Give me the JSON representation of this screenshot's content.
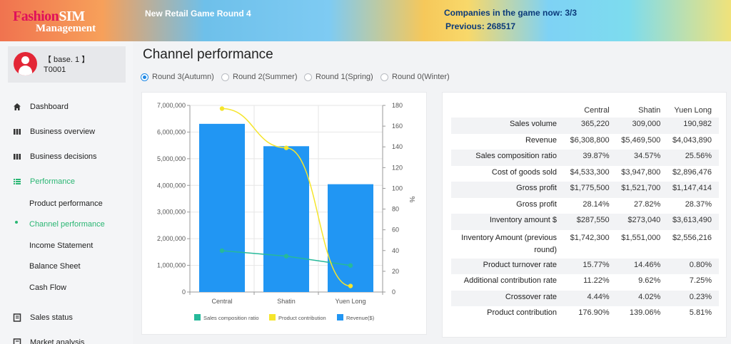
{
  "header": {
    "logo_line1_a": "Fashion",
    "logo_line1_b": "SIM",
    "logo_line2": "Management",
    "game_title": "New Retail Game Round 4",
    "companies": "Companies in the game now: 3/3",
    "previous": "Previous: 268517"
  },
  "user": {
    "name": "【 base. 1 】",
    "id": "T0001",
    "avatar_icon": "user-avatar-icon"
  },
  "sidebar": {
    "items": [
      {
        "label": "Dashboard",
        "icon": "home-icon"
      },
      {
        "label": "Business overview",
        "icon": "columns-icon"
      },
      {
        "label": "Business decisions",
        "icon": "columns-icon"
      },
      {
        "label": "Performance",
        "icon": "list-icon"
      }
    ],
    "sub_items": [
      "Product performance",
      "Channel performance",
      "Income Statement",
      "Balance Sheet",
      "Cash Flow"
    ],
    "more_items": [
      {
        "label": "Sales status",
        "icon": "book-icon"
      },
      {
        "label": "Market analysis",
        "icon": "book-icon"
      }
    ],
    "active_color": "#2ab673"
  },
  "main": {
    "title": "Channel performance",
    "rounds": [
      {
        "label": "Round 3(Autumn)",
        "selected": true
      },
      {
        "label": "Round 2(Summer)",
        "selected": false
      },
      {
        "label": "Round 1(Spring)",
        "selected": false
      },
      {
        "label": "Round 0(Winter)",
        "selected": false
      }
    ]
  },
  "chart_data": {
    "type": "bar",
    "categories": [
      "Central",
      "Shatin",
      "Yuen Long"
    ],
    "series": [
      {
        "name": "Revenue($)",
        "type": "bar",
        "axis": "left",
        "color": "#2196f3",
        "values": [
          6308800,
          5469500,
          4043890
        ]
      },
      {
        "name": "Sales composition ratio",
        "type": "line",
        "axis": "right",
        "color": "#26b99a",
        "values": [
          39.87,
          34.57,
          25.56
        ]
      },
      {
        "name": "Product contribution",
        "type": "line",
        "smooth": true,
        "axis": "right",
        "color": "#f5e52c",
        "values": [
          176.9,
          139.06,
          5.81
        ]
      }
    ],
    "y_left": {
      "min": 0,
      "max": 7000000,
      "step": 1000000,
      "ticks": [
        "0",
        "1,000,000",
        "2,000,000",
        "3,000,000",
        "4,000,000",
        "5,000,000",
        "6,000,000",
        "7,000,000"
      ]
    },
    "y_right": {
      "min": 0,
      "max": 180,
      "step": 20,
      "label": "%",
      "ticks": [
        "0",
        "20",
        "40",
        "60",
        "80",
        "100",
        "120",
        "140",
        "160",
        "180"
      ]
    },
    "grid": true,
    "legend_position": "bottom",
    "legend": [
      "Sales composition ratio",
      "Product contribution",
      "Revenue($)"
    ]
  },
  "table": {
    "columns": [
      "Central",
      "Shatin",
      "Yuen Long"
    ],
    "rows": [
      {
        "label": "Sales volume",
        "values": [
          "365,220",
          "309,000",
          "190,982"
        ]
      },
      {
        "label": "Revenue",
        "values": [
          "$6,308,800",
          "$5,469,500",
          "$4,043,890"
        ]
      },
      {
        "label": "Sales composition ratio",
        "values": [
          "39.87%",
          "34.57%",
          "25.56%"
        ]
      },
      {
        "label": "Cost of goods sold",
        "values": [
          "$4,533,300",
          "$3,947,800",
          "$2,896,476"
        ]
      },
      {
        "label": "Gross profit",
        "values": [
          "$1,775,500",
          "$1,521,700",
          "$1,147,414"
        ]
      },
      {
        "label": "Gross profit",
        "values": [
          "28.14%",
          "27.82%",
          "28.37%"
        ]
      },
      {
        "label": "Inventory amount $",
        "values": [
          "$287,550",
          "$273,040",
          "$3,613,490"
        ]
      },
      {
        "label": "Inventory Amount (previous round)",
        "values": [
          "$1,742,300",
          "$1,551,000",
          "$2,556,216"
        ]
      },
      {
        "label": "Product turnover rate",
        "values": [
          "15.77%",
          "14.46%",
          "0.80%"
        ]
      },
      {
        "label": "Additional contribution rate",
        "values": [
          "11.22%",
          "9.62%",
          "7.25%"
        ]
      },
      {
        "label": "Crossover rate",
        "values": [
          "4.44%",
          "4.02%",
          "0.23%"
        ]
      },
      {
        "label": "Product contribution",
        "values": [
          "176.90%",
          "139.06%",
          "5.81%"
        ]
      }
    ]
  }
}
